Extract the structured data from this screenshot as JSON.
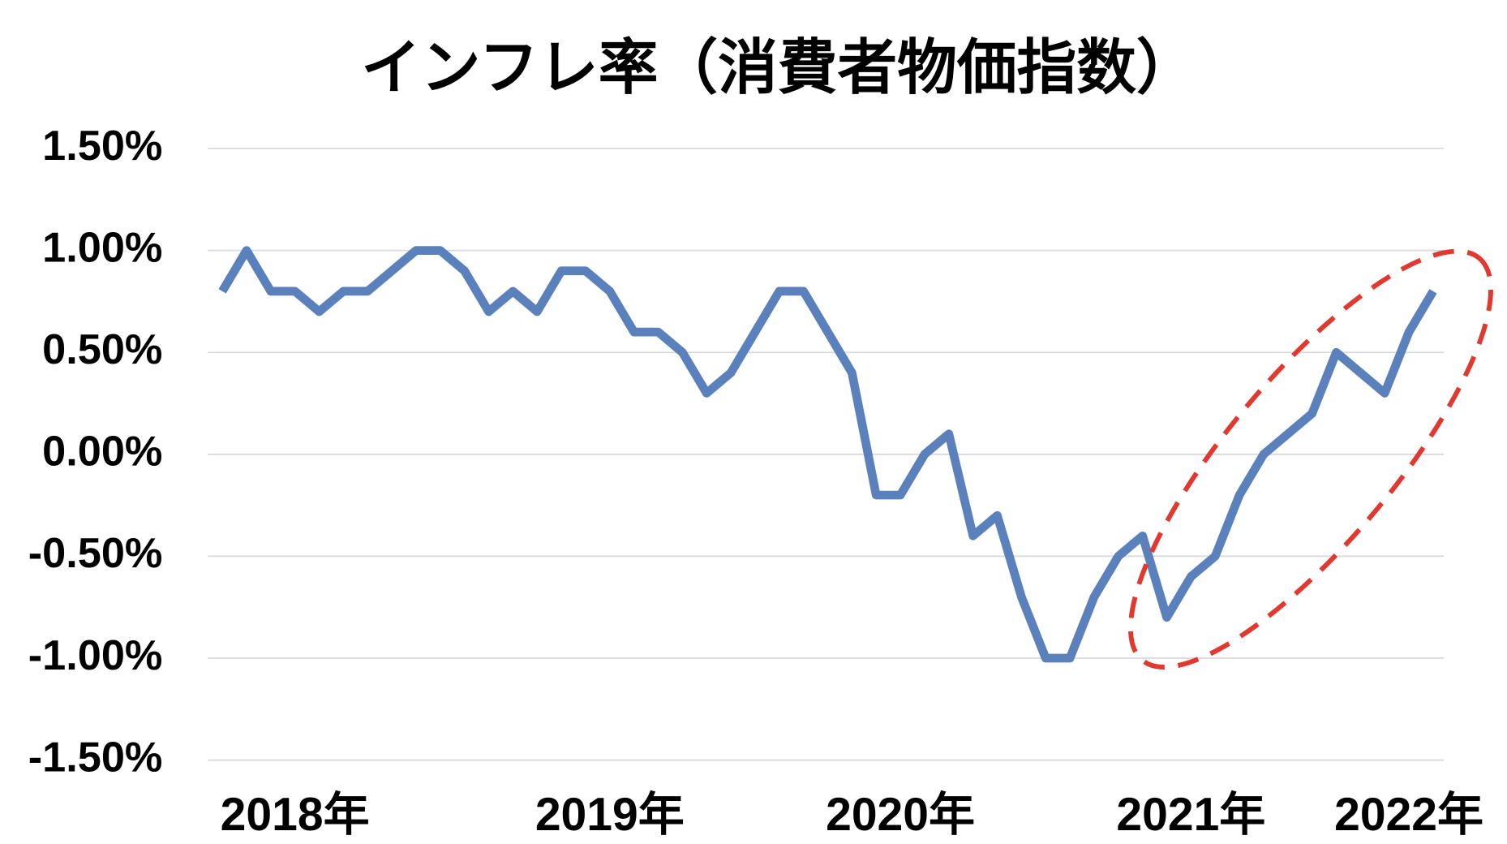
{
  "chart_data": {
    "type": "line",
    "title": "インフレ率（消費者物価指数）",
    "categories": [
      null,
      null,
      null,
      "2018年",
      null,
      null,
      null,
      null,
      null,
      null,
      null,
      null,
      null,
      null,
      null,
      null,
      "2019年",
      null,
      null,
      null,
      null,
      null,
      null,
      null,
      null,
      null,
      null,
      null,
      "2020年",
      null,
      null,
      null,
      null,
      null,
      null,
      null,
      null,
      null,
      null,
      null,
      "2021年",
      null,
      null,
      null,
      null,
      null,
      null,
      null,
      null,
      "2022年",
      null
    ],
    "series": [
      {
        "name": "インフレ率",
        "color": "#5b81bd",
        "values": [
          0.8,
          1.0,
          0.8,
          0.8,
          0.7,
          0.8,
          0.8,
          0.9,
          1.0,
          1.0,
          0.9,
          0.7,
          0.8,
          0.7,
          0.9,
          0.9,
          0.8,
          0.6,
          0.6,
          0.5,
          0.3,
          0.4,
          0.6,
          0.8,
          0.8,
          0.6,
          0.4,
          -0.2,
          -0.2,
          0.0,
          0.1,
          -0.4,
          -0.3,
          -0.7,
          -1.0,
          -1.0,
          -0.7,
          -0.5,
          -0.4,
          -0.8,
          -0.6,
          -0.5,
          -0.2,
          0.0,
          0.1,
          0.2,
          0.5,
          0.4,
          0.3,
          0.6,
          0.8
        ]
      }
    ],
    "ylim": [
      -1.5,
      1.5
    ],
    "yticks": [
      {
        "value": -1.5,
        "label": "-1.50%"
      },
      {
        "value": -1.0,
        "label": "-1.00%"
      },
      {
        "value": -0.5,
        "label": "-0.50%"
      },
      {
        "value": 0.0,
        "label": "0.00%"
      },
      {
        "value": 0.5,
        "label": "0.50%"
      },
      {
        "value": 1.0,
        "label": "1.00%"
      },
      {
        "value": 1.5,
        "label": "1.50%"
      }
    ],
    "grid": true
  }
}
